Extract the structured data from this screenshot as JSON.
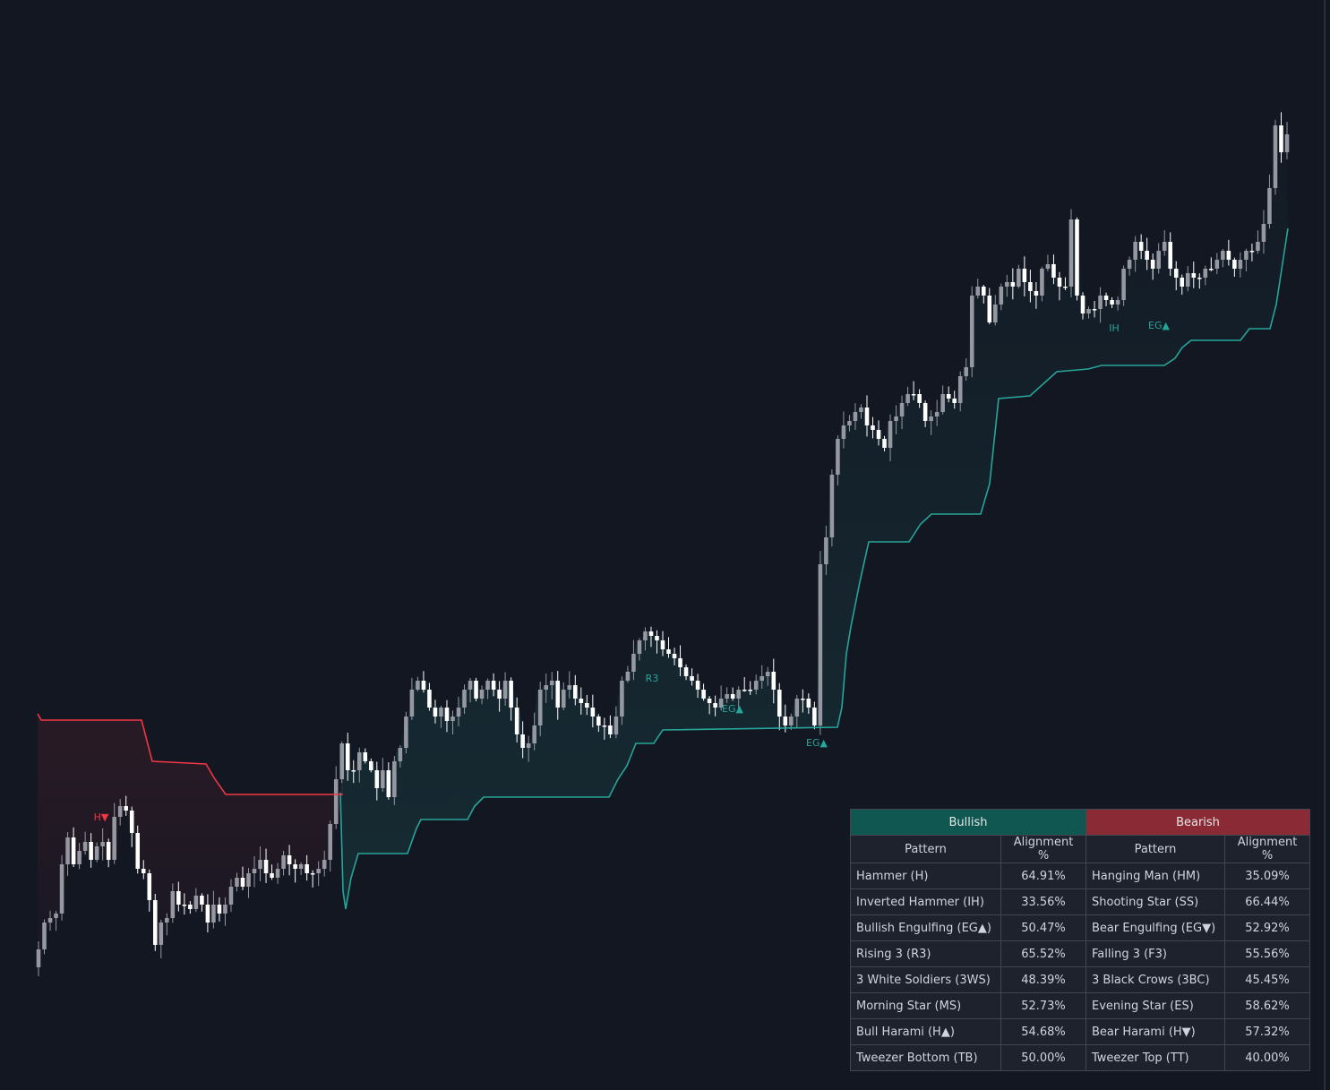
{
  "chart_data": {
    "type": "candlestick",
    "title": "",
    "xlabel": "",
    "ylabel": "",
    "ylim": [
      0,
      1217
    ],
    "colors": {
      "background": "#131722",
      "bull_candle": "#ffffff",
      "bear_candle": "#9598a1",
      "support_line": "#26a69a",
      "resistance_line": "#f23645",
      "bullish_label": "#26a69a",
      "bearish_label": "#f23645"
    },
    "close": [
      1080,
      1060,
      1030,
      1025,
      1020,
      965,
      935,
      965,
      950,
      940,
      960,
      945,
      940,
      960,
      912,
      900,
      905,
      930,
      970,
      975,
      1005,
      1055,
      1030,
      1025,
      995,
      1010,
      1010,
      1015,
      1000,
      1010,
      1030,
      1010,
      1020,
      1010,
      990,
      980,
      990,
      975,
      970,
      960,
      975,
      980,
      970,
      955,
      965,
      970,
      965,
      975,
      975,
      970,
      960,
      920,
      870,
      830,
      860,
      860,
      840,
      850,
      860,
      880,
      860,
      890,
      850,
      835,
      800,
      770,
      760,
      770,
      790,
      800,
      790,
      805,
      800,
      790,
      770,
      760,
      780,
      770,
      760,
      770,
      780,
      760,
      790,
      820,
      835,
      830,
      810,
      770,
      765,
      760,
      790,
      770,
      765,
      780,
      785,
      790,
      800,
      810,
      810,
      820,
      800,
      760,
      750,
      730,
      715,
      705,
      710,
      715,
      725,
      730,
      735,
      745,
      755,
      760,
      770,
      780,
      785,
      790,
      780,
      775,
      780,
      770,
      770,
      770,
      760,
      755,
      750,
      770,
      800,
      810,
      800,
      780,
      780,
      790,
      810,
      630,
      600,
      530,
      490,
      475,
      470,
      460,
      455,
      475,
      480,
      490,
      500,
      470,
      465,
      450,
      440,
      440,
      450,
      470,
      465,
      460,
      440,
      445,
      450,
      420,
      410,
      330,
      320,
      330,
      360,
      340,
      320,
      315,
      320,
      300,
      315,
      325,
      330,
      300,
      295,
      310,
      320,
      320,
      245,
      330,
      350,
      345,
      345,
      330,
      335,
      340,
      335,
      300,
      290,
      270,
      280,
      290,
      300,
      280,
      270,
      300,
      310,
      320,
      305,
      310,
      310,
      300,
      300,
      290,
      280,
      290,
      300,
      290,
      280,
      280,
      270,
      250,
      210,
      140,
      170
    ],
    "open": [
      1060,
      1030,
      1025,
      1020,
      965,
      935,
      965,
      950,
      940,
      960,
      945,
      940,
      960,
      912,
      900,
      905,
      930,
      970,
      975,
      1005,
      1055,
      1030,
      1025,
      995,
      1010,
      1010,
      1015,
      1000,
      1010,
      1030,
      1010,
      1020,
      1010,
      990,
      980,
      990,
      975,
      970,
      960,
      975,
      980,
      970,
      955,
      965,
      970,
      965,
      975,
      975,
      970,
      960,
      920,
      870,
      830,
      860,
      860,
      840,
      850,
      860,
      880,
      860,
      890,
      850,
      835,
      800,
      770,
      760,
      770,
      790,
      800,
      790,
      805,
      800,
      790,
      770,
      760,
      780,
      770,
      760,
      770,
      780,
      760,
      790,
      820,
      835,
      830,
      810,
      770,
      765,
      760,
      790,
      770,
      765,
      780,
      785,
      790,
      800,
      810,
      810,
      820,
      800,
      760,
      750,
      730,
      715,
      705,
      710,
      715,
      725,
      730,
      735,
      745,
      755,
      760,
      770,
      780,
      785,
      790,
      780,
      775,
      780,
      770,
      770,
      770,
      760,
      755,
      750,
      770,
      800,
      810,
      800,
      780,
      780,
      790,
      810,
      630,
      600,
      530,
      490,
      475,
      470,
      460,
      455,
      475,
      480,
      490,
      500,
      470,
      465,
      450,
      440,
      440,
      450,
      470,
      465,
      460,
      440,
      445,
      450,
      420,
      410,
      330,
      320,
      330,
      360,
      340,
      320,
      315,
      320,
      300,
      315,
      325,
      330,
      300,
      295,
      310,
      320,
      320,
      245,
      330,
      350,
      345,
      345,
      330,
      335,
      340,
      335,
      300,
      290,
      270,
      280,
      290,
      300,
      280,
      270,
      300,
      310,
      320,
      305,
      310,
      310,
      300,
      300,
      290,
      280,
      290,
      300,
      290,
      280,
      280,
      270,
      250,
      210,
      140,
      170,
      150
    ],
    "support_line": [
      [
        380,
        885
      ],
      [
        383,
        995
      ],
      [
        386,
        1015
      ],
      [
        392,
        980
      ],
      [
        400,
        953
      ],
      [
        455,
        953
      ],
      [
        465,
        925
      ],
      [
        470,
        915
      ],
      [
        522,
        915
      ],
      [
        530,
        900
      ],
      [
        540,
        890
      ],
      [
        680,
        890
      ],
      [
        690,
        870
      ],
      [
        700,
        855
      ],
      [
        710,
        830
      ],
      [
        730,
        830
      ],
      [
        740,
        815
      ],
      [
        935,
        812
      ],
      [
        940,
        790
      ],
      [
        945,
        730
      ],
      [
        950,
        700
      ],
      [
        960,
        650
      ],
      [
        970,
        605
      ],
      [
        1015,
        605
      ],
      [
        1028,
        585
      ],
      [
        1040,
        574
      ],
      [
        1095,
        574
      ],
      [
        1105,
        540
      ],
      [
        1115,
        445
      ],
      [
        1150,
        442
      ],
      [
        1180,
        415
      ],
      [
        1215,
        412
      ],
      [
        1230,
        408
      ],
      [
        1300,
        408
      ],
      [
        1312,
        400
      ],
      [
        1320,
        388
      ],
      [
        1330,
        380
      ],
      [
        1385,
        380
      ],
      [
        1395,
        367
      ],
      [
        1418,
        367
      ],
      [
        1425,
        340
      ],
      [
        1438,
        255
      ]
    ],
    "resistance_line": [
      [
        42,
        797
      ],
      [
        46,
        804
      ],
      [
        158,
        804
      ],
      [
        170,
        850
      ],
      [
        230,
        853
      ],
      [
        240,
        870
      ],
      [
        252,
        887
      ],
      [
        383,
        887
      ]
    ],
    "annotations": [
      {
        "text": "H▼",
        "x": 113,
        "y": 916,
        "color": "#f23645"
      },
      {
        "text": "R3",
        "x": 728,
        "y": 761,
        "color": "#26a69a"
      },
      {
        "text": "EG▲",
        "x": 818,
        "y": 795,
        "color": "#26a69a"
      },
      {
        "text": "EG▲",
        "x": 912,
        "y": 833,
        "color": "#26a69a"
      },
      {
        "text": "IH",
        "x": 1244,
        "y": 370,
        "color": "#26a69a"
      },
      {
        "text": "EG▲",
        "x": 1294,
        "y": 367,
        "color": "#26a69a"
      }
    ]
  },
  "table": {
    "bullish_header": "Bullish",
    "bearish_header": "Bearish",
    "col_pattern": "Pattern",
    "col_alignment": "Alignment %",
    "rows": [
      {
        "bull_name": "Hammer (H)",
        "bull_pct": "64.91%",
        "bear_name": "Hanging Man (HM)",
        "bear_pct": "35.09%"
      },
      {
        "bull_name": "Inverted Hammer (IH)",
        "bull_pct": "33.56%",
        "bear_name": "Shooting Star (SS)",
        "bear_pct": "66.44%"
      },
      {
        "bull_name": "Bullish Engulfing (EG▲)",
        "bull_pct": "50.47%",
        "bear_name": "Bear Engulfing (EG▼)",
        "bear_pct": "52.92%"
      },
      {
        "bull_name": "Rising 3 (R3)",
        "bull_pct": "65.52%",
        "bear_name": "Falling 3 (F3)",
        "bear_pct": "55.56%"
      },
      {
        "bull_name": "3 White Soldiers (3WS)",
        "bull_pct": "48.39%",
        "bear_name": "3 Black Crows (3BC)",
        "bear_pct": "45.45%"
      },
      {
        "bull_name": "Morning Star (MS)",
        "bull_pct": "52.73%",
        "bear_name": "Evening Star (ES)",
        "bear_pct": "58.62%"
      },
      {
        "bull_name": "Bull Harami (H▲)",
        "bull_pct": "54.68%",
        "bear_name": "Bear Harami (H▼)",
        "bear_pct": "57.32%"
      },
      {
        "bull_name": "Tweezer Bottom (TB)",
        "bull_pct": "50.00%",
        "bear_name": "Tweezer Top (TT)",
        "bear_pct": "40.00%"
      }
    ]
  }
}
